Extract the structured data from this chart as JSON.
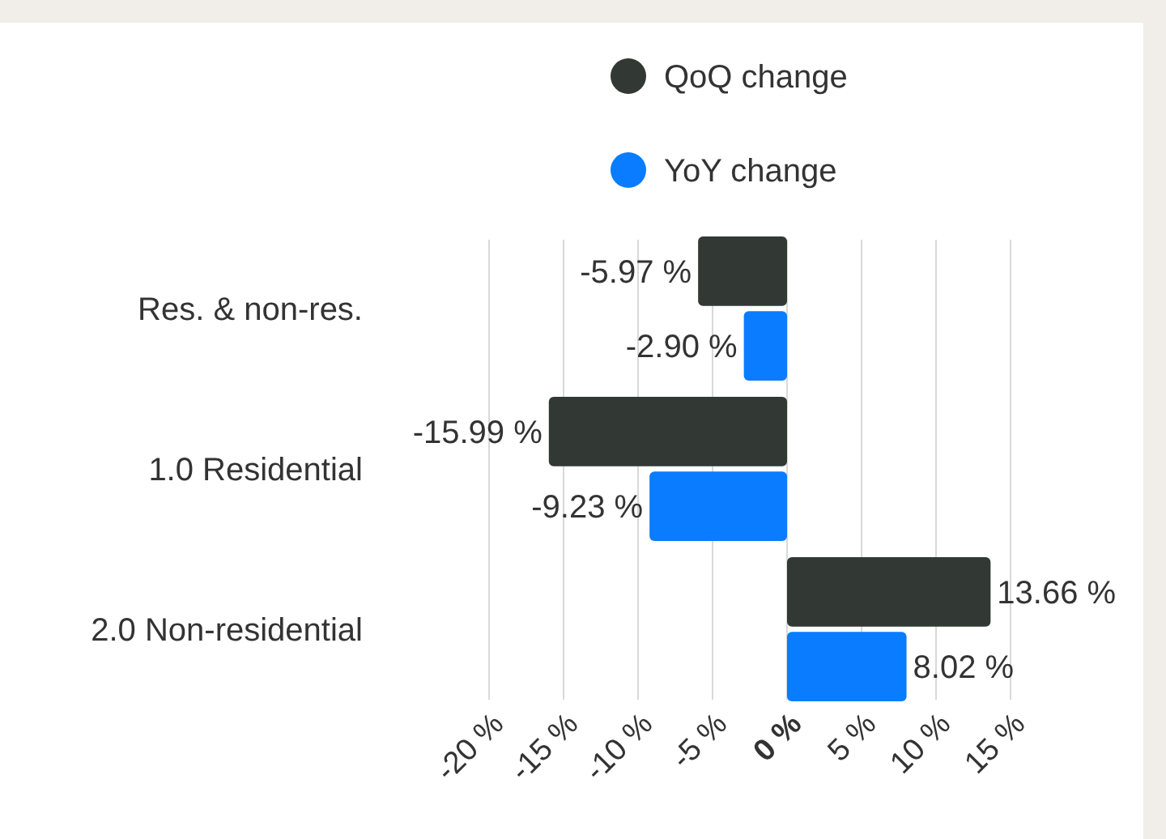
{
  "chart_data": {
    "type": "bar",
    "orientation": "horizontal",
    "categories": [
      "Res. & non-res.",
      "1.0 Residential",
      "2.0 Non-residential"
    ],
    "series": [
      {
        "name": "QoQ change",
        "color": "#323833",
        "values": [
          -5.97,
          -15.99,
          13.66
        ],
        "value_labels": [
          "-5.97 %",
          "-15.99 %",
          "13.66 %"
        ]
      },
      {
        "name": "YoY change",
        "color": "#0a7cff",
        "values": [
          -2.9,
          -9.23,
          8.02
        ],
        "value_labels": [
          "-2.90 %",
          "-9.23 %",
          "8.02 %"
        ]
      }
    ],
    "xlim": [
      -20,
      15
    ],
    "xticks": [
      {
        "value": -20,
        "label": "-20 %"
      },
      {
        "value": -15,
        "label": "-15 %"
      },
      {
        "value": -10,
        "label": "-10 %"
      },
      {
        "value": -5,
        "label": "-5 %"
      },
      {
        "value": 0,
        "label": "0 %"
      },
      {
        "value": 5,
        "label": "5 %"
      },
      {
        "value": 10,
        "label": "10 %"
      },
      {
        "value": 15,
        "label": "15 %"
      }
    ],
    "grid": "x",
    "legend": "top"
  }
}
